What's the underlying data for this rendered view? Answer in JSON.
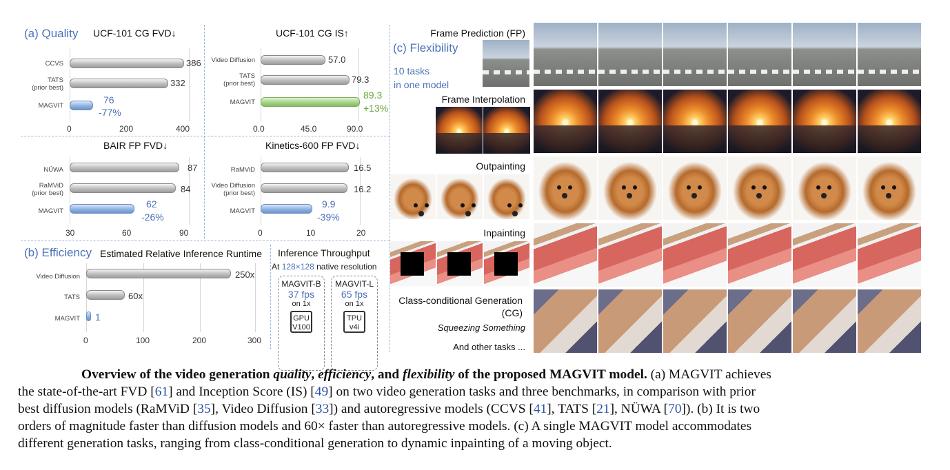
{
  "panel_a": {
    "label": "(a) Quality",
    "charts": [
      {
        "title": "UCF-101 CG FVD↓",
        "bars": [
          {
            "label": [
              "CCVS"
            ],
            "value": "386"
          },
          {
            "label": [
              "TATS",
              "(prior best)"
            ],
            "value": "332"
          },
          {
            "label": [
              "MAGVIT"
            ],
            "value": "76",
            "extra": "-77%"
          }
        ],
        "ticks": [
          "0",
          "200",
          "400"
        ]
      },
      {
        "title": "UCF-101 CG IS↑",
        "bars": [
          {
            "label": [
              "Video Diffusion"
            ],
            "value": "57.0"
          },
          {
            "label": [
              "TATS",
              "(prior best)"
            ],
            "value": "79.3"
          },
          {
            "label": [
              "MAGVIT"
            ],
            "value": "89.3",
            "extra": "+13%"
          }
        ],
        "ticks": [
          "0.0",
          "45.0",
          "90.0"
        ]
      },
      {
        "title": "BAIR FP FVD↓",
        "bars": [
          {
            "label": [
              "NÜWA"
            ],
            "value": "87"
          },
          {
            "label": [
              "RaMViD",
              "(prior best)"
            ],
            "value": "84"
          },
          {
            "label": [
              "MAGVIT"
            ],
            "value": "62",
            "extra": "-26%"
          }
        ],
        "ticks": [
          "30",
          "60",
          "90"
        ]
      },
      {
        "title": "Kinetics-600 FP FVD↓",
        "bars": [
          {
            "label": [
              "RaMViD"
            ],
            "value": "16.5"
          },
          {
            "label": [
              "Video Diffusion",
              "(prior best)"
            ],
            "value": "16.2"
          },
          {
            "label": [
              "MAGVIT"
            ],
            "value": "9.9",
            "extra": "-39%"
          }
        ],
        "ticks": [
          "0",
          "10",
          "20"
        ]
      }
    ]
  },
  "panel_b": {
    "label": "(b) Efficiency",
    "runtime_title": "Estimated Relative Inference Runtime",
    "bars": [
      {
        "label": "Video Diffusion",
        "value": "250x"
      },
      {
        "label": "TATS",
        "value": "60x"
      },
      {
        "label": "MAGVIT",
        "value": "1"
      }
    ],
    "ticks": [
      "0",
      "100",
      "200",
      "300"
    ],
    "throughput_title": "Inference Throughput",
    "resolution_prefix": "At",
    "resolution_value": "128×128",
    "resolution_suffix": "native resolution",
    "devices": [
      {
        "model": "MAGVIT-B",
        "fps": "37 fps",
        "on": "on 1x",
        "chip": [
          "GPU",
          "V100"
        ]
      },
      {
        "model": "MAGVIT-L",
        "fps": "65 fps",
        "on": "on 1x",
        "chip": [
          "TPU",
          "v4i"
        ]
      }
    ]
  },
  "panel_c": {
    "label": "(c) Flexibility",
    "sub1": "10 tasks",
    "sub2": "in one model",
    "tasks": {
      "fp": "Frame Prediction (FP)",
      "fi": "Frame Interpolation",
      "op": "Outpainting",
      "ip": "Inpainting",
      "cg1": "Class-conditional Generation",
      "cg2": "(CG)",
      "cg_class": "Squeezing Something",
      "other": "And other tasks ..."
    }
  },
  "caption": {
    "t1": "Overview of the video generation ",
    "t2": "quality",
    "t3": ", ",
    "t4": "efficiency",
    "t5": ", and ",
    "t6": "flexibility",
    "t7": " of the proposed MAGVIT model.",
    "r1": " (a) MAGVIT achieves",
    "l2a": "the state-of-the-art FVD [",
    "r61": "61",
    "l2b": "] and Inception Score (IS) [",
    "r49": "49",
    "l2c": "] on two video generation tasks and three benchmarks, in comparison with prior",
    "l3a": "best diffusion models (RaMViD [",
    "r35": "35",
    "l3b": "], Video Diffusion [",
    "r33": "33",
    "l3c": "]) and autoregressive models (CCVS [",
    "r41": "41",
    "l3d": "], TATS [",
    "r21": "21",
    "l3e": "], NÜWA [",
    "r70": "70",
    "l3f": "]). (b) It is two",
    "l4": "orders of magnitude faster than diffusion models and 60× faster than autoregressive models. (c) A single MAGVIT model accommodates",
    "l5": "different generation tasks, ranging from class-conditional generation to dynamic inpainting of a moving object."
  }
}
